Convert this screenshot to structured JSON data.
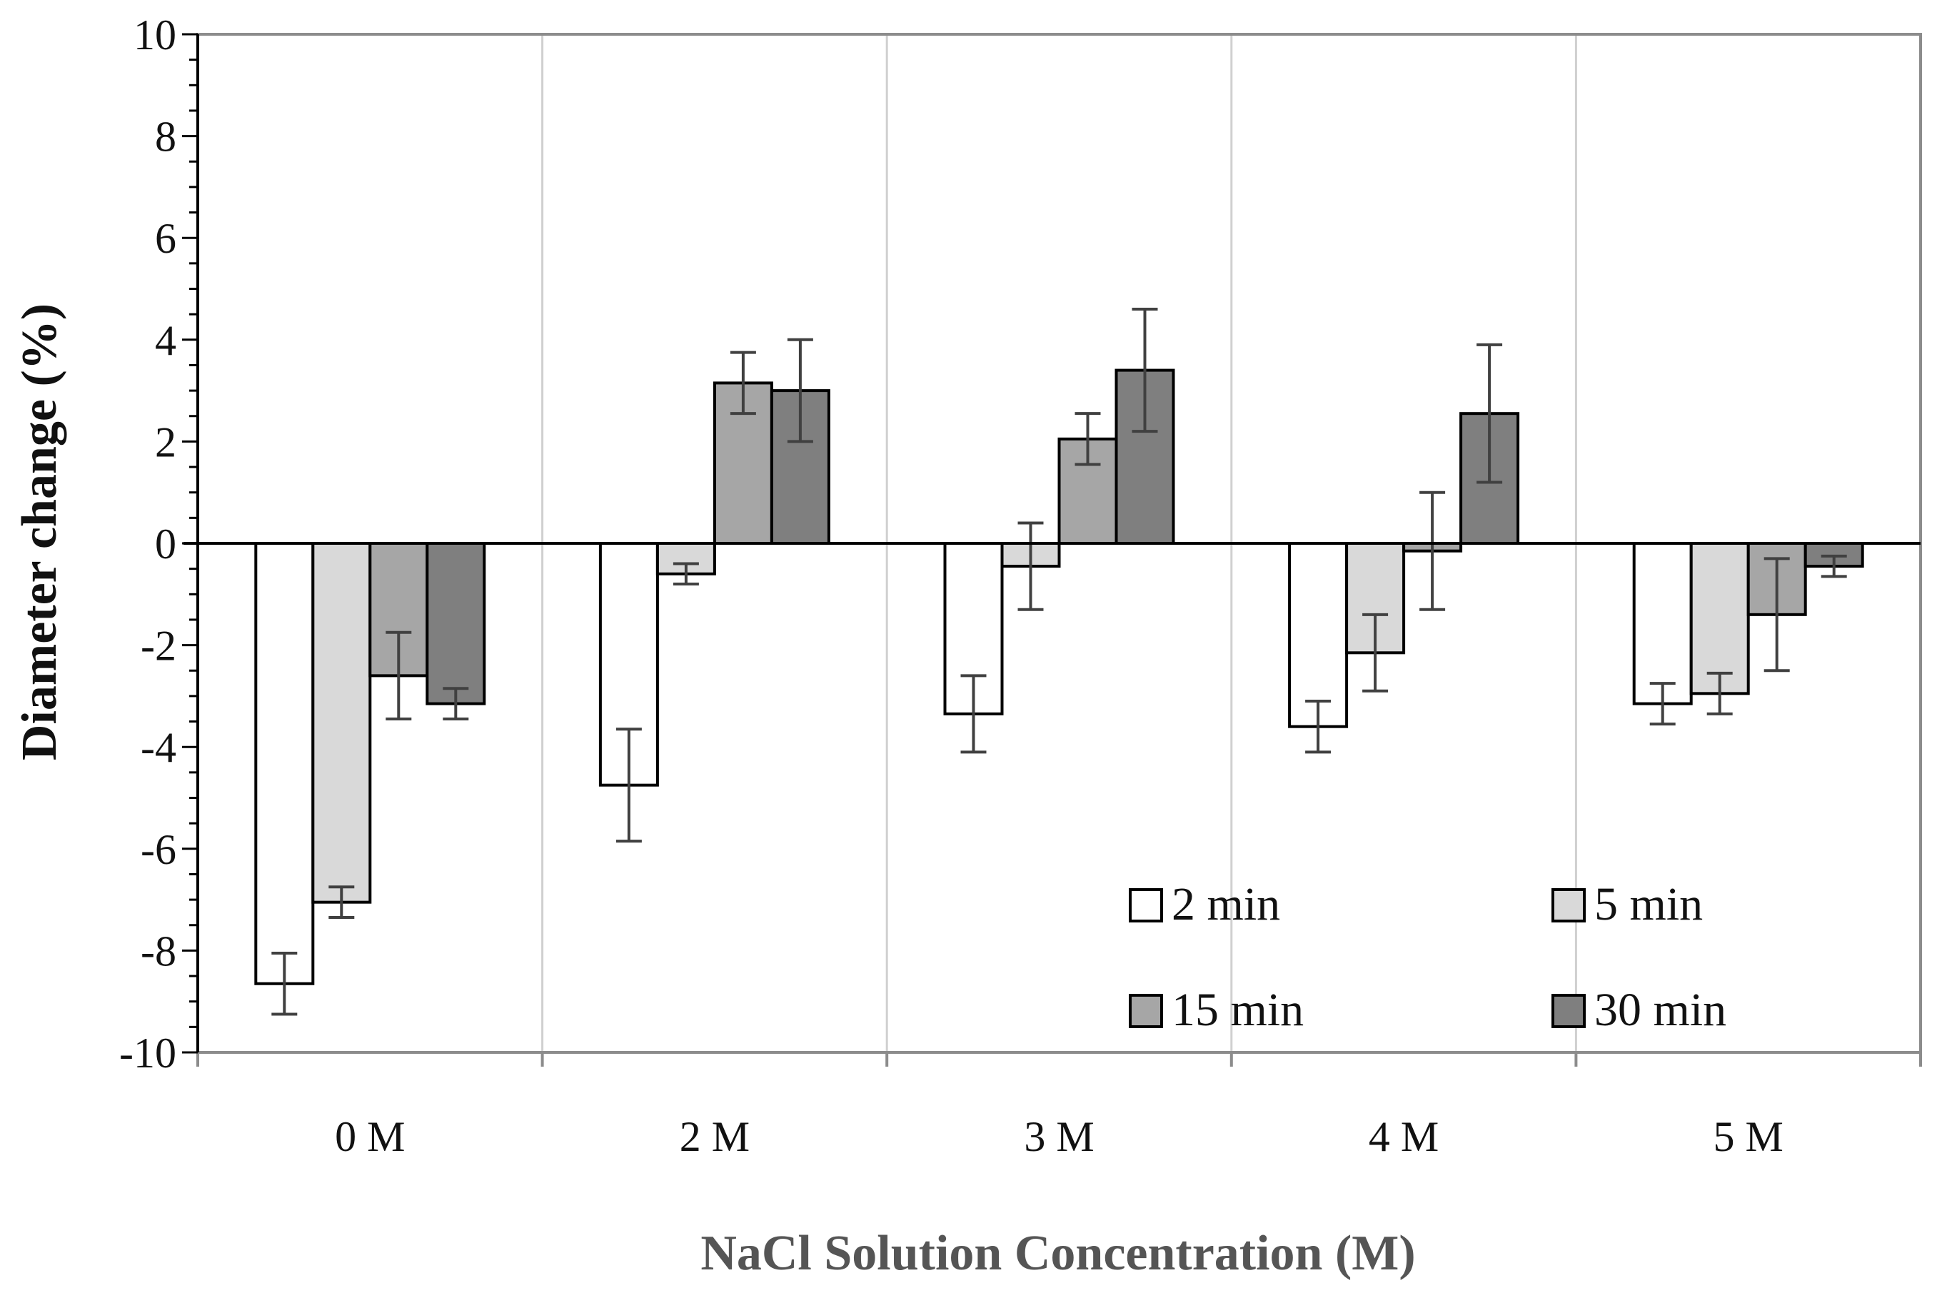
{
  "chart_data": {
    "type": "bar",
    "title": "",
    "xlabel": "NaCl Solution Concentration (M)",
    "ylabel": "Diameter change (%)",
    "ylim": [
      -10,
      10
    ],
    "yticks": [
      10,
      8,
      6,
      4,
      2,
      0,
      -2,
      -4,
      -6,
      -8,
      -10
    ],
    "categories": [
      "0 M",
      "2 M",
      "3 M",
      "4 M",
      "5 M"
    ],
    "grid": "vertical category separators",
    "legend_placement": "bottom-right",
    "series": [
      {
        "name": "2 min",
        "color": "#ffffff",
        "values": [
          -8.65,
          -4.75,
          -3.35,
          -3.6,
          -3.15
        ],
        "errors": [
          0.6,
          1.1,
          0.75,
          0.5,
          0.4
        ]
      },
      {
        "name": "5 min",
        "color": "#d9d9d9",
        "values": [
          -7.05,
          -0.6,
          -0.45,
          -2.15,
          -2.95
        ],
        "errors": [
          0.3,
          0.2,
          0.85,
          0.75,
          0.4
        ]
      },
      {
        "name": "15 min",
        "color": "#a6a6a6",
        "values": [
          -2.6,
          3.15,
          2.05,
          -0.15,
          -1.4
        ],
        "errors": [
          0.85,
          0.6,
          0.5,
          1.15,
          1.1
        ]
      },
      {
        "name": "30 min",
        "color": "#7f7f7f",
        "values": [
          -3.15,
          3.0,
          3.4,
          2.55,
          -0.45
        ],
        "errors": [
          0.3,
          1.0,
          1.2,
          1.35,
          0.2
        ]
      }
    ]
  }
}
